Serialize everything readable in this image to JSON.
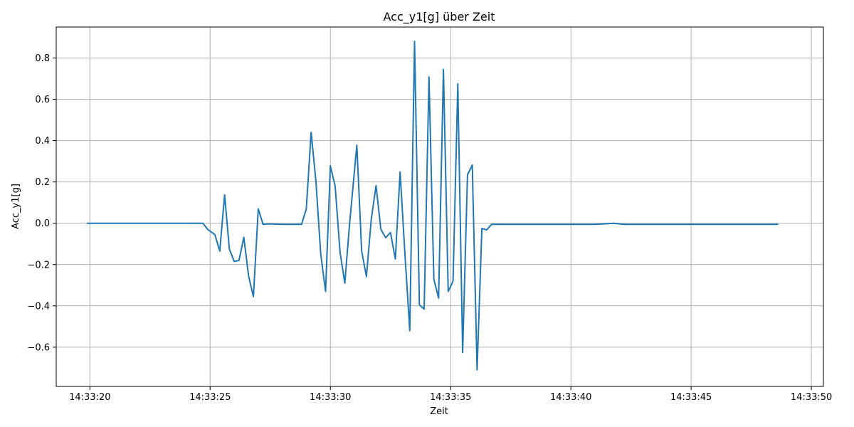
{
  "chart_data": {
    "type": "line",
    "title": "Acc_y1[g] über Zeit",
    "xlabel": "Zeit",
    "ylabel": "Acc_y1[g]",
    "grid": true,
    "x_time_start": "14:33:20",
    "xlim": [
      "14:33:18.6",
      "14:33:50.5"
    ],
    "ylim": [
      -0.79,
      0.95
    ],
    "xticks": [
      "14:33:20",
      "14:33:25",
      "14:33:30",
      "14:33:35",
      "14:33:40",
      "14:33:45",
      "14:33:50"
    ],
    "yticks": [
      -0.6,
      -0.4,
      -0.2,
      0.0,
      0.2,
      0.4,
      0.6,
      0.8
    ],
    "ytick_labels": [
      "−0.6",
      "−0.4",
      "−0.2",
      "0.0",
      "0.2",
      "0.4",
      "0.6",
      "0.8"
    ],
    "series": [
      {
        "color": "#1f77b4",
        "x": [
          "14:33:19.9",
          "14:33:20.5",
          "14:33:21.0",
          "14:33:21.5",
          "14:33:22.0",
          "14:33:22.5",
          "14:33:23.0",
          "14:33:23.5",
          "14:33:24.0",
          "14:33:24.7",
          "14:33:24.9",
          "14:33:25.2",
          "14:33:25.4",
          "14:33:25.6",
          "14:33:25.8",
          "14:33:26.0",
          "14:33:26.2",
          "14:33:26.4",
          "14:33:26.6",
          "14:33:26.8",
          "14:33:27.0",
          "14:33:27.2",
          "14:33:27.4",
          "14:33:28.0",
          "14:33:28.8",
          "14:33:29.0",
          "14:33:29.2",
          "14:33:29.4",
          "14:33:29.6",
          "14:33:29.8",
          "14:33:30.0",
          "14:33:30.2",
          "14:33:30.4",
          "14:33:30.6",
          "14:33:30.8",
          "14:33:31.1",
          "14:33:31.3",
          "14:33:31.5",
          "14:33:31.7",
          "14:33:31.9",
          "14:33:32.1",
          "14:33:32.3",
          "14:33:32.5",
          "14:33:32.7",
          "14:33:32.9",
          "14:33:33.1",
          "14:33:33.3",
          "14:33:33.5",
          "14:33:33.7",
          "14:33:33.9",
          "14:33:34.1",
          "14:33:34.3",
          "14:33:34.5",
          "14:33:34.7",
          "14:33:34.9",
          "14:33:35.1",
          "14:33:35.3",
          "14:33:35.5",
          "14:33:35.7",
          "14:33:35.9",
          "14:33:36.1",
          "14:33:36.3",
          "14:33:36.5",
          "14:33:36.7",
          "14:33:36.9",
          "14:33:37.1",
          "14:33:38.0",
          "14:33:39.0",
          "14:33:40.0",
          "14:33:41.0",
          "14:33:41.8",
          "14:33:42.2",
          "14:33:43.0",
          "14:33:44.0",
          "14:33:45.0",
          "14:33:46.0",
          "14:33:47.0",
          "14:33:48.0",
          "14:33:48.6"
        ],
        "y": [
          0.0,
          0.0,
          0.0,
          0.0,
          0.0,
          0.0,
          0.0,
          0.0,
          0.0,
          0.0,
          -0.03,
          -0.055,
          -0.135,
          0.138,
          -0.125,
          -0.185,
          -0.18,
          -0.068,
          -0.255,
          -0.355,
          0.07,
          -0.005,
          -0.003,
          -0.005,
          -0.005,
          0.07,
          0.44,
          0.2,
          -0.15,
          -0.33,
          0.278,
          0.178,
          -0.14,
          -0.29,
          0.0,
          0.378,
          -0.135,
          -0.258,
          0.02,
          0.182,
          -0.03,
          -0.07,
          -0.045,
          -0.173,
          0.248,
          -0.15,
          -0.52,
          0.88,
          -0.395,
          -0.415,
          0.708,
          -0.27,
          -0.362,
          0.745,
          -0.33,
          -0.28,
          0.675,
          -0.625,
          0.235,
          0.282,
          -0.71,
          -0.025,
          -0.032,
          -0.005,
          -0.005,
          -0.005,
          -0.005,
          -0.005,
          -0.005,
          -0.005,
          0.0,
          -0.005,
          -0.005,
          -0.005,
          -0.005,
          -0.005,
          -0.005,
          -0.005,
          -0.005
        ]
      }
    ]
  }
}
